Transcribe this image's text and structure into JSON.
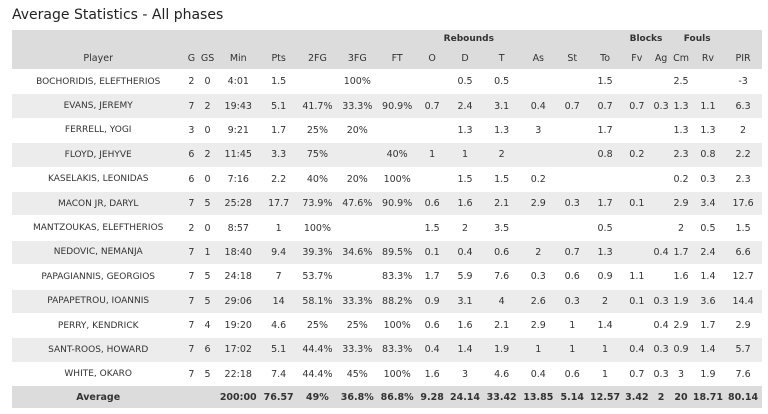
{
  "page": {
    "title": "Average Statistics - All phases"
  },
  "groups": {
    "rebounds": "Rebounds",
    "blocks": "Blocks",
    "fouls": "Fouls"
  },
  "columns": [
    "Player",
    "G",
    "GS",
    "Min",
    "Pts",
    "2FG",
    "3FG",
    "FT",
    "O",
    "D",
    "T",
    "As",
    "St",
    "To",
    "Fv",
    "Ag",
    "Cm",
    "Rv",
    "PIR"
  ],
  "rows": [
    [
      "BOCHORIDIS, ELEFTHERIOS",
      "2",
      "0",
      "4:01",
      "1.5",
      "",
      "100%",
      "",
      "",
      "0.5",
      "0.5",
      "",
      "",
      "1.5",
      "",
      "",
      "2.5",
      "",
      "-3"
    ],
    [
      "EVANS, JEREMY",
      "7",
      "2",
      "19:43",
      "5.1",
      "41.7%",
      "33.3%",
      "90.9%",
      "0.7",
      "2.4",
      "3.1",
      "0.4",
      "0.7",
      "0.7",
      "0.7",
      "0.3",
      "1.3",
      "1.1",
      "6.3"
    ],
    [
      "FERRELL, YOGI",
      "3",
      "0",
      "9:21",
      "1.7",
      "25%",
      "20%",
      "",
      "",
      "1.3",
      "1.3",
      "3",
      "",
      "1.7",
      "",
      "",
      "1.3",
      "1.3",
      "2"
    ],
    [
      "FLOYD, JEHYVE",
      "6",
      "2",
      "11:45",
      "3.3",
      "75%",
      "",
      "40%",
      "1",
      "1",
      "2",
      "",
      "",
      "0.8",
      "0.2",
      "",
      "2.3",
      "0.8",
      "2.2"
    ],
    [
      "KASELAKIS, LEONIDAS",
      "6",
      "0",
      "7:16",
      "2.2",
      "40%",
      "20%",
      "100%",
      "",
      "1.5",
      "1.5",
      "0.2",
      "",
      "",
      "",
      "",
      "0.2",
      "0.3",
      "2.3"
    ],
    [
      "MACON JR, DARYL",
      "7",
      "5",
      "25:28",
      "17.7",
      "73.9%",
      "47.6%",
      "90.9%",
      "0.6",
      "1.6",
      "2.1",
      "2.9",
      "0.3",
      "1.7",
      "0.1",
      "",
      "2.9",
      "3.4",
      "17.6"
    ],
    [
      "MANTZOUKAS, ELEFTHERIOS",
      "2",
      "0",
      "8:57",
      "1",
      "100%",
      "",
      "",
      "1.5",
      "2",
      "3.5",
      "",
      "",
      "0.5",
      "",
      "",
      "2",
      "0.5",
      "1.5"
    ],
    [
      "NEDOVIC, NEMANJA",
      "7",
      "1",
      "18:40",
      "9.4",
      "39.3%",
      "34.6%",
      "89.5%",
      "0.1",
      "0.4",
      "0.6",
      "2",
      "0.7",
      "1.3",
      "",
      "0.4",
      "1.7",
      "2.4",
      "6.6"
    ],
    [
      "PAPAGIANNIS, GEORGIOS",
      "7",
      "5",
      "24:18",
      "7",
      "53.7%",
      "",
      "83.3%",
      "1.7",
      "5.9",
      "7.6",
      "0.3",
      "0.6",
      "0.9",
      "1.1",
      "",
      "1.6",
      "1.4",
      "12.7"
    ],
    [
      "PAPAPETROU, IOANNIS",
      "7",
      "5",
      "29:06",
      "14",
      "58.1%",
      "33.3%",
      "88.2%",
      "0.9",
      "3.1",
      "4",
      "2.6",
      "0.3",
      "2",
      "0.1",
      "0.3",
      "1.9",
      "3.6",
      "14.4"
    ],
    [
      "PERRY, KENDRICK",
      "7",
      "4",
      "19:20",
      "4.6",
      "25%",
      "25%",
      "100%",
      "0.6",
      "1.6",
      "2.1",
      "2.9",
      "1",
      "1.4",
      "",
      "0.4",
      "2.9",
      "1.7",
      "2.9"
    ],
    [
      "SANT-ROOS, HOWARD",
      "7",
      "6",
      "17:02",
      "5.1",
      "44.4%",
      "33.3%",
      "83.3%",
      "0.4",
      "1.4",
      "1.9",
      "1",
      "1",
      "1",
      "0.4",
      "0.3",
      "0.9",
      "1.4",
      "5.7"
    ],
    [
      "WHITE, OKARO",
      "7",
      "5",
      "22:18",
      "7.4",
      "44.4%",
      "45%",
      "100%",
      "1.6",
      "3",
      "4.6",
      "0.4",
      "0.6",
      "1",
      "0.7",
      "0.3",
      "3",
      "1.9",
      "7.6"
    ]
  ],
  "totals": [
    "Average",
    "",
    "",
    "200:00",
    "76.57",
    "49%",
    "36.8%",
    "86.8%",
    "9.28",
    "24.14",
    "33.42",
    "13.85",
    "5.14",
    "12.57",
    "3.42",
    "2",
    "20",
    "18.71",
    "80.14"
  ],
  "colors": {
    "header_bg": "#dcdcdc",
    "row_even": "#ececec",
    "row_odd": "#ffffff"
  }
}
